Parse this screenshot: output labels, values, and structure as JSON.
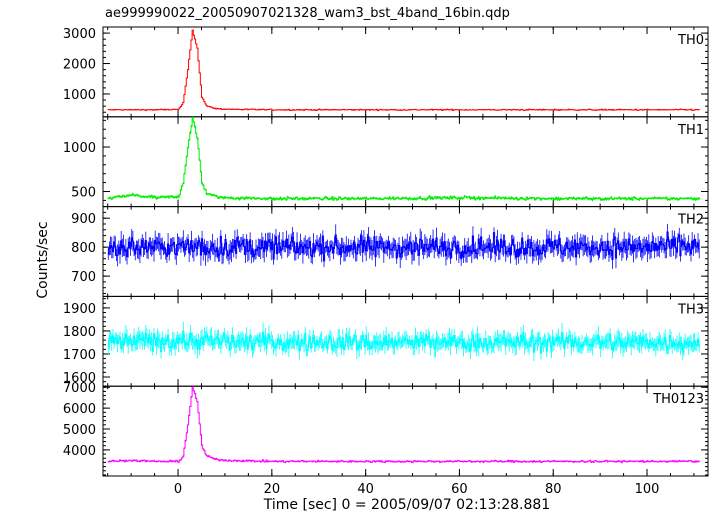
{
  "chart_data": {
    "type": "line",
    "title": "ae999990022_20050907021328_wam3_bst_4band_16bin.qdp",
    "xlabel": "Time [sec] 0 = 2005/09/07 02:13:28.881",
    "ylabel": "Counts/sec",
    "xlim": [
      -16,
      113
    ],
    "x_ticks": [
      0,
      20,
      40,
      60,
      80,
      100
    ],
    "x_tick_labels": [
      "0",
      "20",
      "40",
      "60",
      "80",
      "100"
    ],
    "series": [
      {
        "name": "TH0",
        "color": "#ff0000",
        "ylim": [
          250,
          3200
        ],
        "y_ticks": [
          1000,
          2000,
          3000
        ],
        "y_tick_labels": [
          "1000",
          "2000",
          "3000"
        ],
        "baseline": 480,
        "noise": 30,
        "peak": 3100,
        "x": [
          -15,
          -10,
          -5,
          0,
          1,
          2,
          3,
          4,
          5,
          6,
          8,
          10,
          20,
          40,
          60,
          80,
          100,
          111
        ],
        "values": [
          480,
          480,
          480,
          490,
          700,
          1800,
          3100,
          2500,
          900,
          600,
          520,
          500,
          480,
          480,
          480,
          480,
          480,
          480
        ]
      },
      {
        "name": "TH1",
        "color": "#00ee00",
        "ylim": [
          330,
          1340
        ],
        "y_ticks": [
          500,
          1000
        ],
        "y_tick_labels": [
          "500",
          "1000"
        ],
        "baseline": 420,
        "noise": 25,
        "peak": 1330,
        "x": [
          -15,
          -10,
          -5,
          0,
          1,
          2,
          3,
          4,
          5,
          6,
          8,
          10,
          20,
          40,
          60,
          80,
          100,
          111
        ],
        "values": [
          420,
          460,
          430,
          440,
          600,
          1000,
          1330,
          1100,
          600,
          480,
          440,
          430,
          420,
          420,
          430,
          420,
          420,
          420
        ]
      },
      {
        "name": "TH2",
        "color": "#0000ff",
        "ylim": [
          630,
          940
        ],
        "y_ticks": [
          700,
          800,
          900
        ],
        "y_tick_labels": [
          "700",
          "800",
          "900"
        ],
        "baseline": 800,
        "noise": 55,
        "x": [
          -15,
          0,
          20,
          40,
          60,
          80,
          100,
          111
        ],
        "values": [
          800,
          800,
          800,
          800,
          800,
          800,
          800,
          800
        ]
      },
      {
        "name": "TH3",
        "color": "#00ffff",
        "ylim": [
          1560,
          1950
        ],
        "y_ticks": [
          1600,
          1700,
          1800,
          1900
        ],
        "y_tick_labels": [
          "1600",
          "1700",
          "1800",
          "1900"
        ],
        "baseline": 1750,
        "noise": 60,
        "x": [
          -15,
          0,
          20,
          40,
          60,
          80,
          100,
          111
        ],
        "values": [
          1750,
          1760,
          1750,
          1750,
          1750,
          1750,
          1750,
          1750
        ]
      },
      {
        "name": "TH0123",
        "color": "#ff00ff",
        "ylim": [
          2750,
          7050
        ],
        "y_ticks": [
          4000,
          5000,
          6000,
          7000
        ],
        "y_tick_labels": [
          "4000",
          "5000",
          "6000",
          "7000"
        ],
        "baseline": 3450,
        "noise": 70,
        "peak": 7000,
        "x": [
          -15,
          -10,
          -5,
          0,
          1,
          2,
          3,
          4,
          5,
          6,
          8,
          10,
          20,
          40,
          60,
          80,
          100,
          111
        ],
        "values": [
          3450,
          3500,
          3450,
          3450,
          3700,
          5200,
          7000,
          6300,
          4200,
          3700,
          3550,
          3500,
          3450,
          3450,
          3450,
          3450,
          3450,
          3450
        ]
      }
    ],
    "grid": false,
    "legend": "none"
  }
}
